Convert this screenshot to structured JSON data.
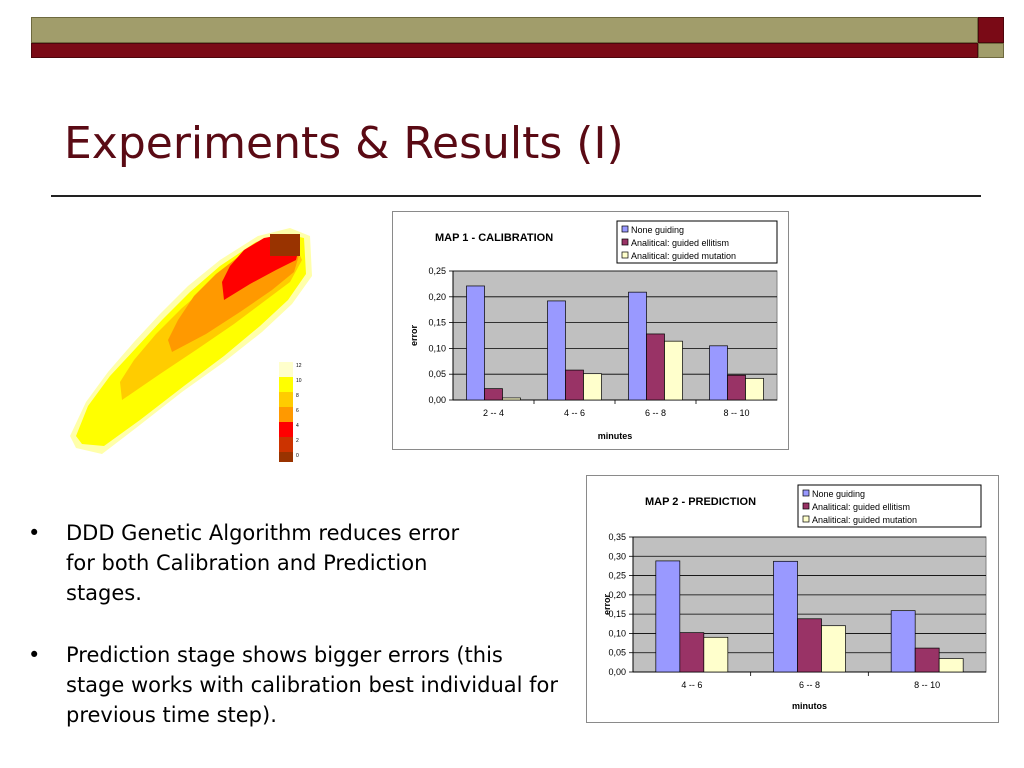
{
  "slide": {
    "title": "Experiments & Results (I)"
  },
  "bullets": [
    {
      "marker": "•",
      "text": "DDD Genetic Algorithm reduces error for both Calibration and Prediction stages."
    },
    {
      "marker": "•",
      "text": "Prediction stage shows bigger errors (this stage works with calibration best individual for previous time step)."
    }
  ],
  "colors": {
    "accent_olive": "#a19d6b",
    "accent_maroon": "#7a0a16",
    "title_text": "#5a0a14",
    "plot_bg": "#c0c0c0",
    "series": [
      "#9999ff",
      "#993366",
      "#ffffcc"
    ]
  },
  "heatmap": {
    "legend_ticks": [
      "12",
      "10",
      "8",
      "6",
      "4",
      "2",
      "0"
    ],
    "legend_colors": [
      "#ffffcc",
      "#ffff00",
      "#ffcc00",
      "#ff9900",
      "#ff0000",
      "#cc3300",
      "#993300"
    ]
  },
  "chart_data": [
    {
      "type": "bar",
      "title": "MAP 1 - CALIBRATION",
      "xlabel": "minutes",
      "ylabel": "error",
      "ylim": [
        0,
        0.25
      ],
      "yticks": [
        "0,00",
        "0,05",
        "0,10",
        "0,15",
        "0,20",
        "0,25"
      ],
      "ytick_values": [
        0,
        0.05,
        0.1,
        0.15,
        0.2,
        0.25
      ],
      "categories": [
        "2 -- 4",
        "4 -- 6",
        "6 -- 8",
        "8 -- 10"
      ],
      "series": [
        {
          "name": "None guiding",
          "values": [
            0.221,
            0.192,
            0.209,
            0.105
          ]
        },
        {
          "name": "Analitical: guided ellitism",
          "values": [
            0.022,
            0.058,
            0.128,
            0.048
          ]
        },
        {
          "name": "Analitical: guided mutation",
          "values": [
            0.004,
            0.051,
            0.114,
            0.042
          ]
        }
      ],
      "legend": "top-right",
      "grid": true
    },
    {
      "type": "bar",
      "title": "MAP 2 - PREDICTION",
      "xlabel": "minutos",
      "ylabel": "error",
      "ylim": [
        0,
        0.35
      ],
      "yticks": [
        "0,00",
        "0,05",
        "0,10",
        "0,15",
        "0,20",
        "0,25",
        "0,30",
        "0,35"
      ],
      "ytick_values": [
        0,
        0.05,
        0.1,
        0.15,
        0.2,
        0.25,
        0.3,
        0.35
      ],
      "categories": [
        "4 -- 6",
        "6 -- 8",
        "8 -- 10"
      ],
      "series": [
        {
          "name": "None guiding",
          "values": [
            0.288,
            0.287,
            0.159
          ]
        },
        {
          "name": "Analitical: guided ellitism",
          "values": [
            0.102,
            0.138,
            0.062
          ]
        },
        {
          "name": "Analitical: guided mutation",
          "values": [
            0.09,
            0.12,
            0.035
          ]
        }
      ],
      "legend": "top-right",
      "grid": true
    }
  ]
}
